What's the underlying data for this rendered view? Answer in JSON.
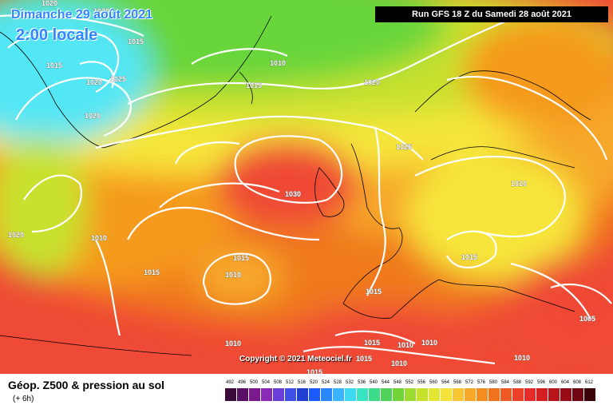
{
  "header": {
    "date_line": "Dimanche 29 août 2021",
    "time_line": "2:00 locale",
    "run_banner": "Run GFS 18 Z du Samedi 28 août 2021"
  },
  "copyright": "Copyright © 2021 Meteociel.fr",
  "footer": {
    "title": "Géop. Z500 & pression au sol",
    "subtitle": "(+ 6h)"
  },
  "colors": {
    "cyan": "#52e6f5",
    "green": "#67d63b",
    "yellow_green": "#c8e12e",
    "yellow": "#f6e63a",
    "orange": "#f59a1f",
    "dark_orange": "#f07a1e",
    "red": "#ef4a35",
    "coast": "#000000",
    "isobar": "#ffffff"
  },
  "isobar_labels": [
    "1020",
    "1020",
    "1015",
    "1015",
    "1025",
    "1020",
    "1010",
    "1015",
    "1020",
    "1025",
    "1030",
    "1010",
    "1020",
    "1010",
    "1015",
    "1015",
    "1010",
    "1015",
    "1015",
    "1010",
    "1015",
    "1010",
    "1010",
    "1015",
    "1010",
    "1010",
    "1005",
    "1020",
    "1015"
  ],
  "legend_scale": {
    "ticks": [
      "492",
      "496",
      "500",
      "504",
      "508",
      "512",
      "516",
      "520",
      "524",
      "528",
      "532",
      "536",
      "540",
      "544",
      "548",
      "552",
      "556",
      "560",
      "564",
      "568",
      "572",
      "576",
      "580",
      "584",
      "588",
      "592",
      "596",
      "600",
      "604",
      "608",
      "612"
    ],
    "colors": [
      "#3b0b3a",
      "#5a0f66",
      "#7a1a8c",
      "#8a2ab8",
      "#6a3fd6",
      "#3f4fe8",
      "#1f3fd0",
      "#1a5cff",
      "#2a86ff",
      "#39b4ff",
      "#3ed8f0",
      "#37e6c0",
      "#3ddc8a",
      "#4fd25a",
      "#72d43a",
      "#9bdc2e",
      "#c6e12c",
      "#e4e634",
      "#f5e23a",
      "#f7c632",
      "#f6a82a",
      "#f48c22",
      "#f2731e",
      "#ef5a22",
      "#ec4128",
      "#e42a2a",
      "#d31e22",
      "#b8141c",
      "#960c16",
      "#700612",
      "#3a0208"
    ]
  }
}
